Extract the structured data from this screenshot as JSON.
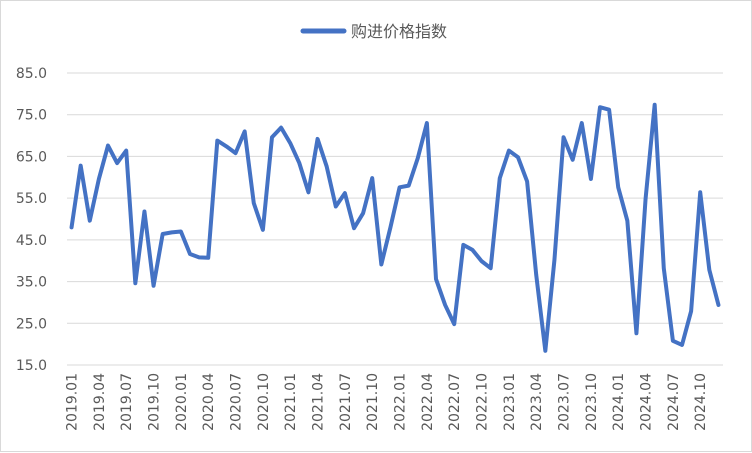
{
  "chart_data": {
    "type": "line",
    "title": "",
    "xlabel": "",
    "ylabel": "",
    "ylim": [
      15,
      85
    ],
    "yticks": [
      "15.0",
      "25.0",
      "35.0",
      "45.0",
      "55.0",
      "65.0",
      "75.0",
      "85.0"
    ],
    "grid": true,
    "legend_position": "top",
    "series_color": "#4472C4",
    "series": [
      {
        "name": "购进价格指数",
        "values": [
          48.0,
          62.8,
          49.6,
          59.6,
          67.6,
          63.4,
          66.4,
          34.6,
          51.8,
          34.0,
          46.4,
          46.8,
          47.0,
          41.6,
          40.8,
          40.7,
          68.8,
          67.4,
          65.8,
          71.0,
          53.8,
          47.4,
          69.6,
          71.9,
          68.2,
          63.4,
          56.4,
          69.2,
          62.6,
          53.0,
          56.2,
          47.8,
          51.4,
          59.8,
          39.1,
          48.0,
          57.6,
          58.0,
          64.6,
          73.0,
          35.6,
          29.4,
          24.8,
          43.8,
          42.6,
          39.9,
          38.2,
          59.8,
          66.4,
          64.8,
          59.0,
          36.6,
          18.4,
          40.2,
          69.6,
          64.2,
          73.0,
          59.6,
          76.8,
          76.2,
          57.6,
          49.6,
          22.6,
          54.8,
          77.4,
          38.2,
          20.8,
          19.8,
          27.9,
          56.4,
          37.8,
          29.4
        ]
      }
    ],
    "x_tick_labels": [
      "2019.01",
      "2019.04",
      "2019.07",
      "2019.10",
      "2020.01",
      "2020.04",
      "2020.07",
      "2020.10",
      "2021.01",
      "2021.04",
      "2021.07",
      "2021.10",
      "2022.01",
      "2022.04",
      "2022.07",
      "2022.10",
      "2023.01",
      "2023.04",
      "2023.07",
      "2023.10",
      "2024.01",
      "2024.04",
      "2024.07",
      "2024.10"
    ]
  }
}
